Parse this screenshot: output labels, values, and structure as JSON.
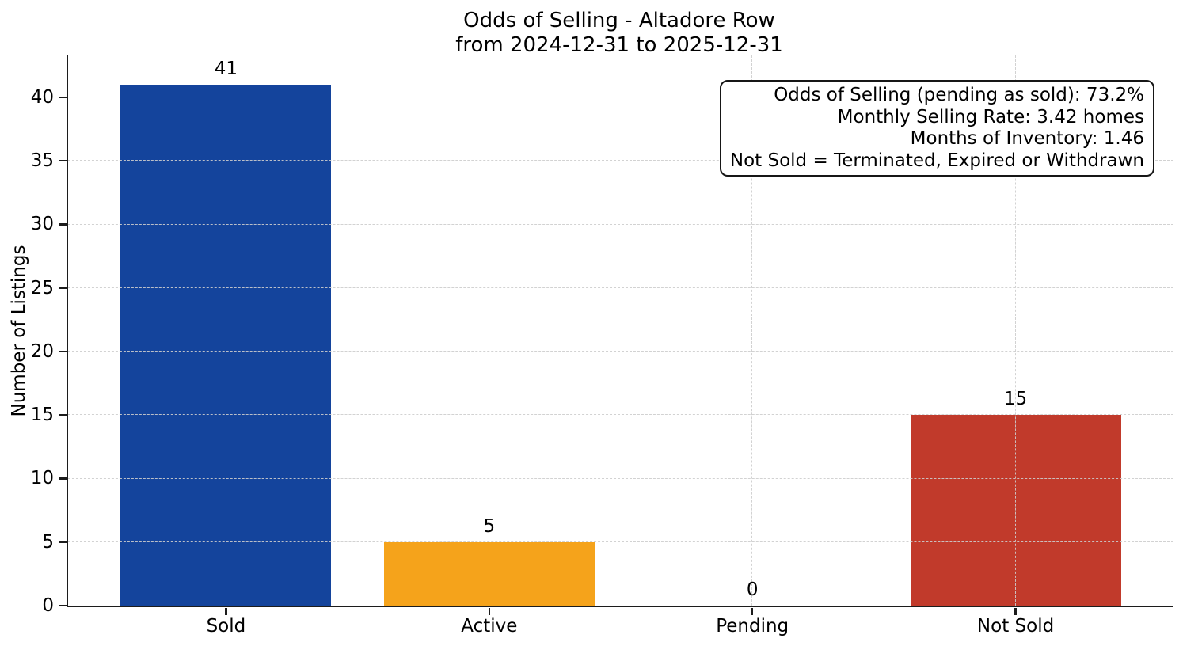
{
  "chart_data": {
    "type": "bar",
    "title": "Odds of Selling - Altadore Row",
    "subtitle": "from 2024-12-31 to 2025-12-31",
    "categories": [
      "Sold",
      "Active",
      "Pending",
      "Not Sold"
    ],
    "values": [
      41,
      5,
      0,
      15
    ],
    "bar_value_labels": [
      "41",
      "5",
      "0",
      "15"
    ],
    "bar_colors": [
      "#14449c",
      "#f5a31b",
      "#999999",
      "#c13a2b"
    ],
    "xlabel": "",
    "ylabel": "Number of Listings",
    "ylim": [
      0,
      43.3
    ],
    "yticks": [
      0,
      5,
      10,
      15,
      20,
      25,
      30,
      35,
      40
    ],
    "grid": "dashed-both-axes-over-bars",
    "legend": "none",
    "annotation": {
      "lines": [
        "Odds of Selling (pending as sold): 73.2%",
        "Monthly Selling Rate: 3.42 homes",
        "Months of Inventory: 1.46",
        "Not Sold = Terminated, Expired or Withdrawn"
      ]
    },
    "colors": {
      "sold_bar": "#14449c",
      "active_bar": "#f5a31b",
      "not_sold_bar": "#c13a2b",
      "axis": "#1c1c1c",
      "gridline": "#cdcdcd",
      "background": "#ffffff"
    }
  }
}
